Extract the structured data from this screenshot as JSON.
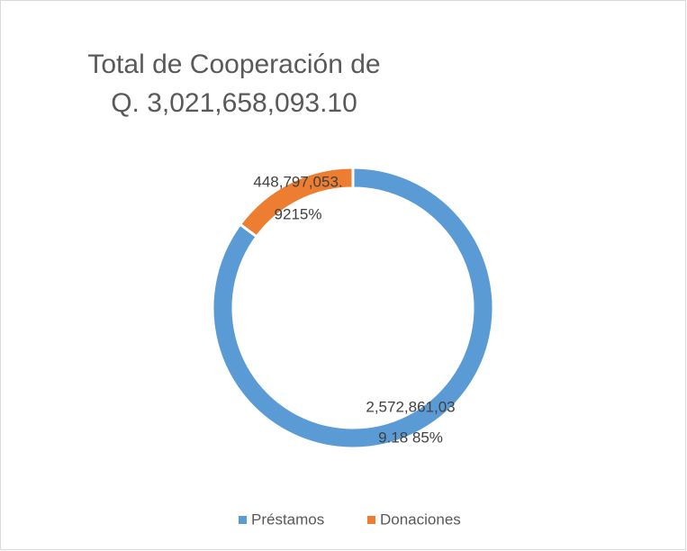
{
  "chart_data": {
    "type": "donut",
    "title": [
      "Total de Cooperación de",
      "Q. 3,021,658,093.10"
    ],
    "categories": [
      "Préstamos",
      "Donaciones"
    ],
    "values": [
      2572861039.18,
      448797053.92
    ],
    "value_labels": [
      [
        "2,572,861,03",
        "9.18 85%"
      ],
      [
        "448,797,053.",
        "9215%"
      ]
    ],
    "colors": [
      "#5b9bd5",
      "#ed7d31"
    ],
    "legend": "bottom"
  }
}
